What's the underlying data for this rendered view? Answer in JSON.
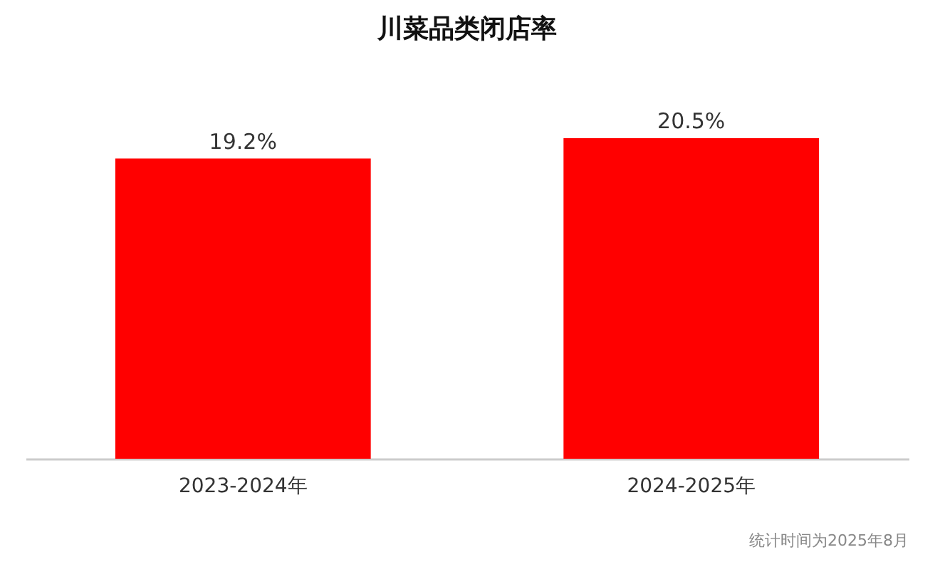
{
  "chart_data": {
    "type": "bar",
    "title": "川菜品类闭店率",
    "categories": [
      "2023-2024年",
      "2024-2025年"
    ],
    "values": [
      19.2,
      20.5
    ],
    "value_labels": [
      "19.2%",
      "20.5%"
    ],
    "color": "#ff0000",
    "tick_labels": "x",
    "annotations": [
      "统计时间为2025年8月"
    ]
  }
}
